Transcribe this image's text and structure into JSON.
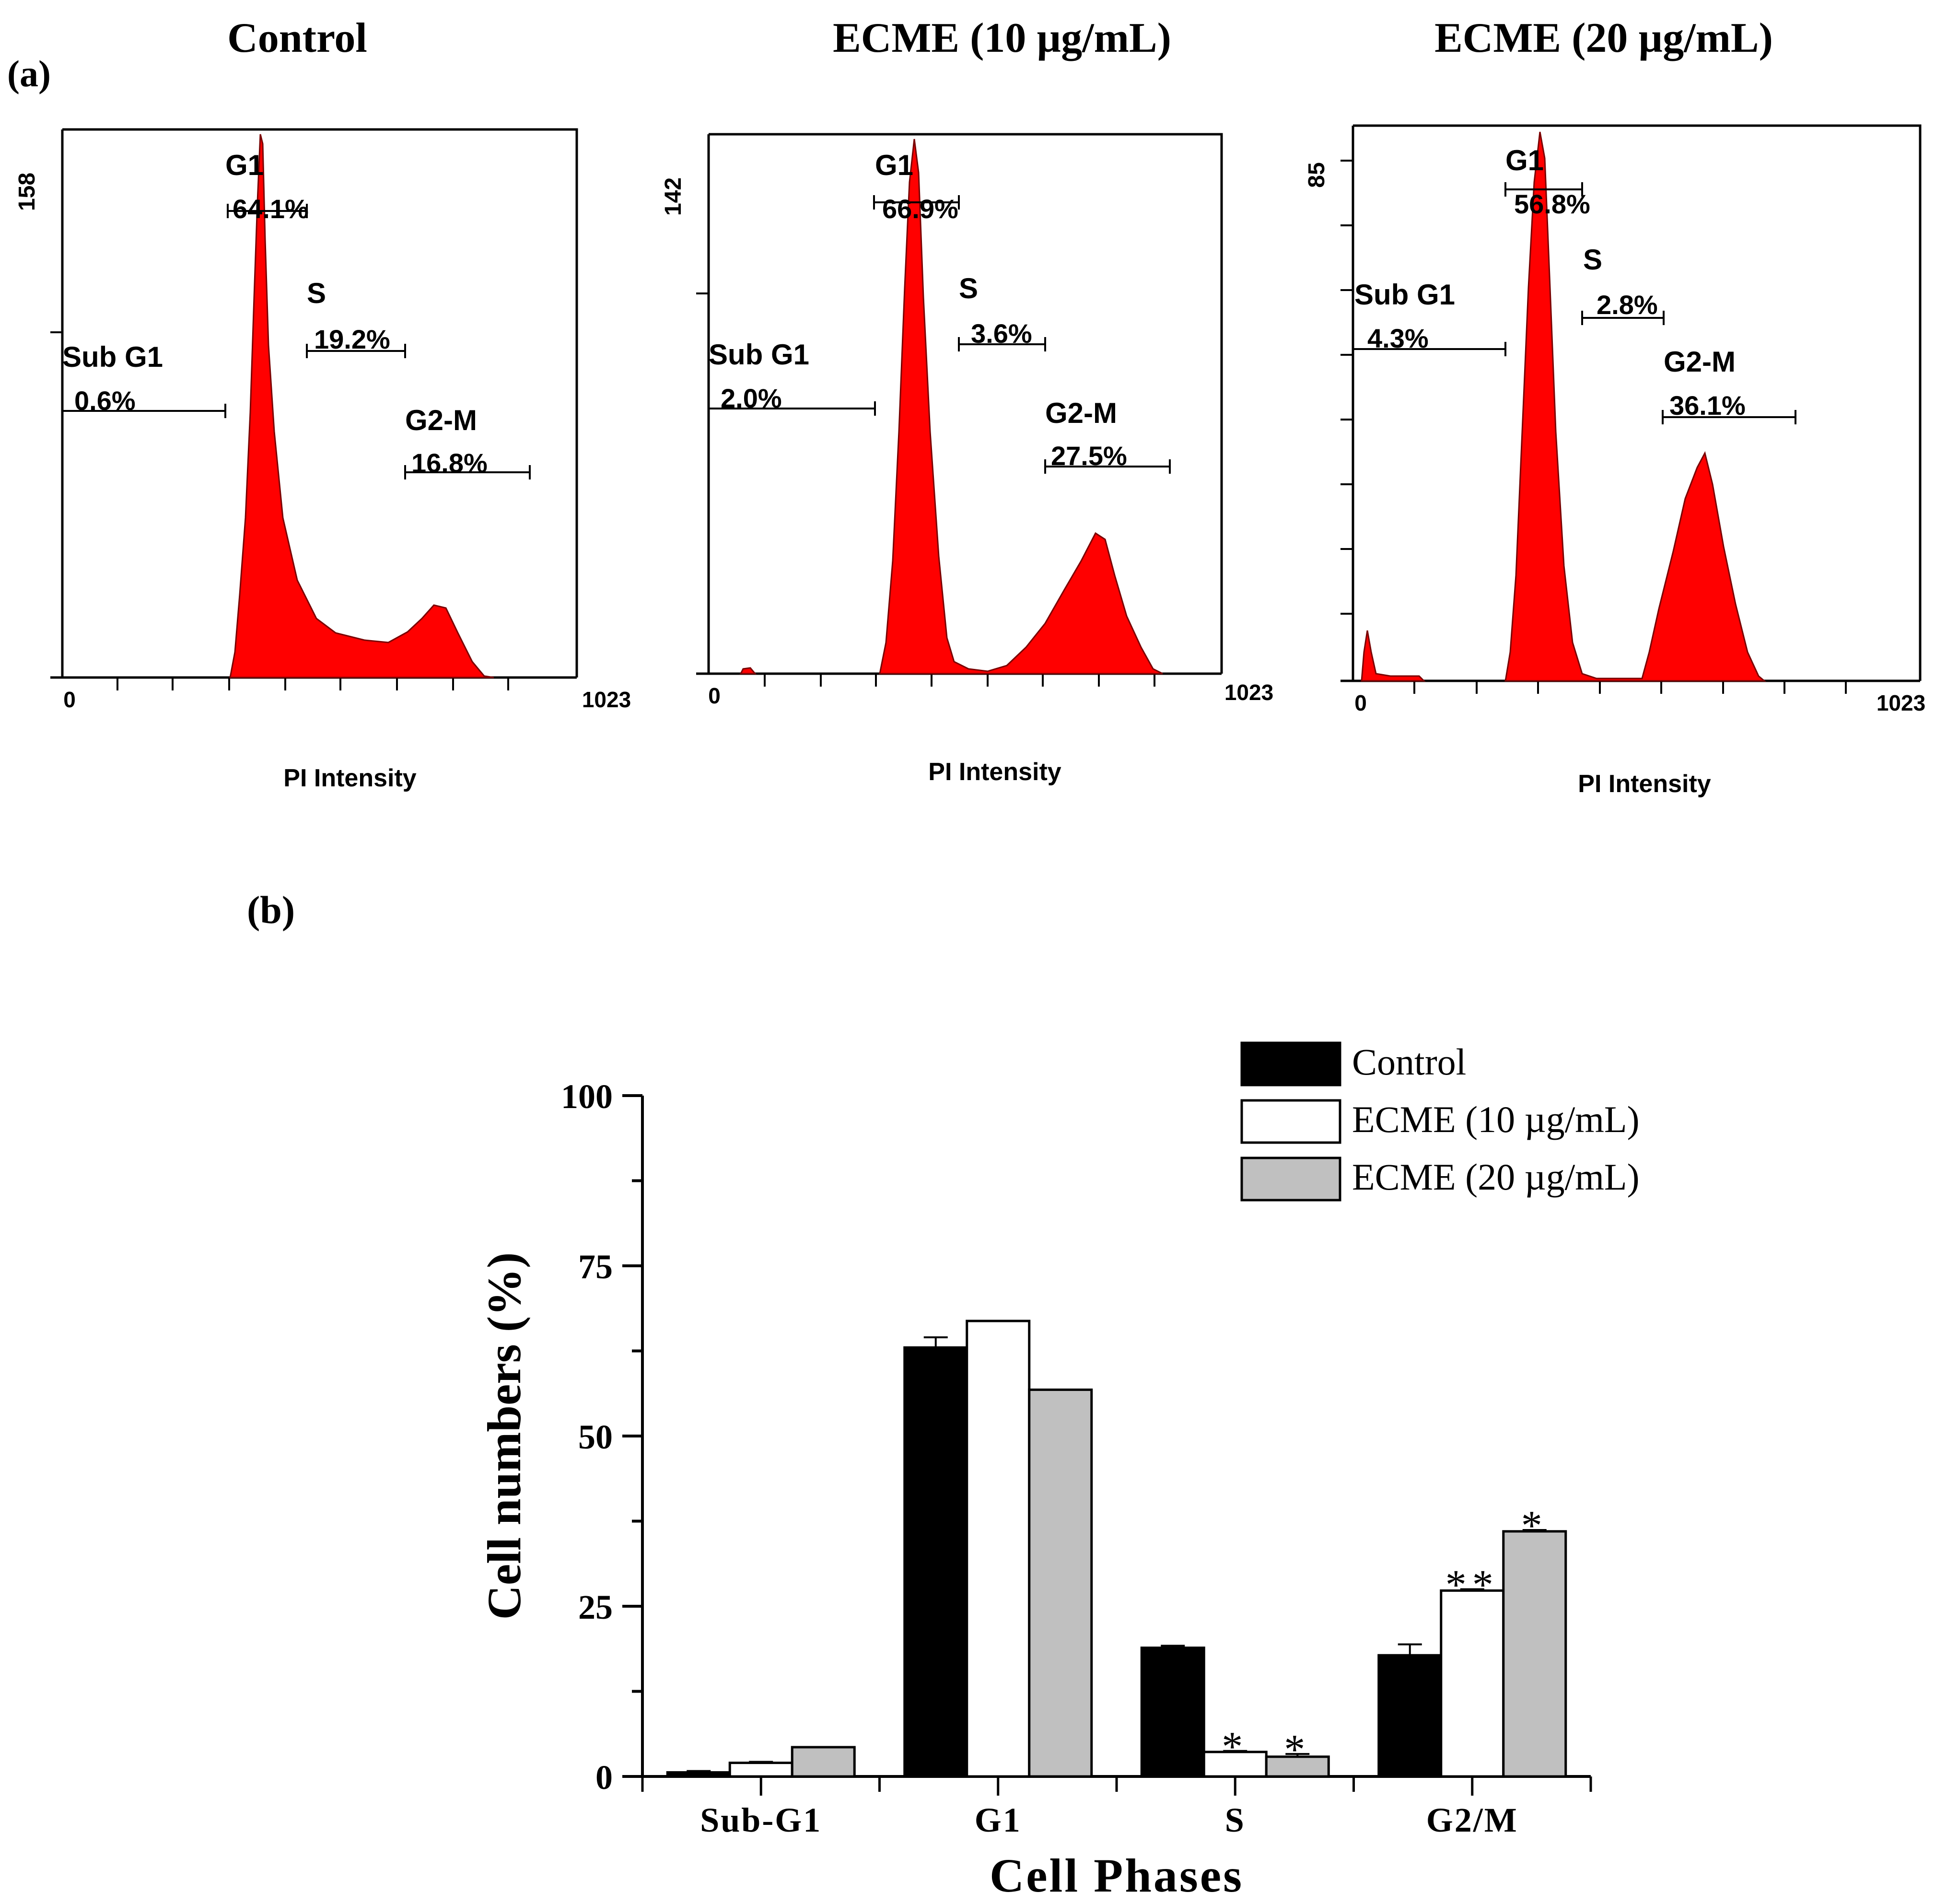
{
  "panel_a": {
    "label": "(a)",
    "xlabel": "PI Intensity",
    "x_min_label": "0",
    "x_max_label": "1023",
    "histograms": [
      {
        "title": "Control",
        "ymax_label": "158",
        "gates": [
          {
            "name": "Sub G1",
            "value": "0.6%"
          },
          {
            "name": "G1",
            "value": "64.1%"
          },
          {
            "name": "S",
            "value": "19.2%"
          },
          {
            "name": "G2-M",
            "value": "16.8%"
          }
        ]
      },
      {
        "title": "ECME (10 µg/mL)",
        "ymax_label": "142",
        "gates": [
          {
            "name": "Sub G1",
            "value": "2.0%"
          },
          {
            "name": "G1",
            "value": "66.9%"
          },
          {
            "name": "S",
            "value": "3.6%"
          },
          {
            "name": "G2-M",
            "value": "27.5%"
          }
        ]
      },
      {
        "title": "ECME (20 µg/mL)",
        "ymax_label": "85",
        "gates": [
          {
            "name": "Sub G1",
            "value": "4.3%"
          },
          {
            "name": "G1",
            "value": "56.8%"
          },
          {
            "name": "S",
            "value": "2.8%"
          },
          {
            "name": "G2-M",
            "value": "36.1%"
          }
        ]
      }
    ]
  },
  "panel_b": {
    "label": "(b)"
  },
  "chart_data": {
    "type": "bar",
    "title": "",
    "xlabel": "Cell Phases",
    "ylabel": "Cell numbers (%)",
    "categories": [
      "Sub-G1",
      "G1",
      "S",
      "G2/M"
    ],
    "ylim": [
      0,
      100
    ],
    "yticks": [
      0,
      25,
      50,
      75,
      100
    ],
    "series": [
      {
        "name": "Control",
        "color": "#000000",
        "values": [
          0.6,
          63.0,
          18.9,
          17.8
        ],
        "errors": [
          0.2,
          1.5,
          0.3,
          1.6
        ],
        "significance": [
          "",
          "",
          "",
          ""
        ]
      },
      {
        "name": "ECME  (10 µg/mL)",
        "color": "#ffffff",
        "values": [
          2.0,
          66.9,
          3.6,
          27.3
        ],
        "errors": [
          0.15,
          0,
          0.15,
          0.2
        ],
        "significance": [
          "",
          "",
          "*",
          "**"
        ]
      },
      {
        "name": "ECME  (20 µg/mL)",
        "color": "#c0c0c0",
        "values": [
          4.3,
          56.8,
          2.9,
          36.0
        ],
        "errors": [
          0,
          0,
          0.4,
          0.2
        ],
        "significance": [
          "",
          "",
          "*",
          "*"
        ]
      }
    ],
    "legend_position": "top-right"
  }
}
